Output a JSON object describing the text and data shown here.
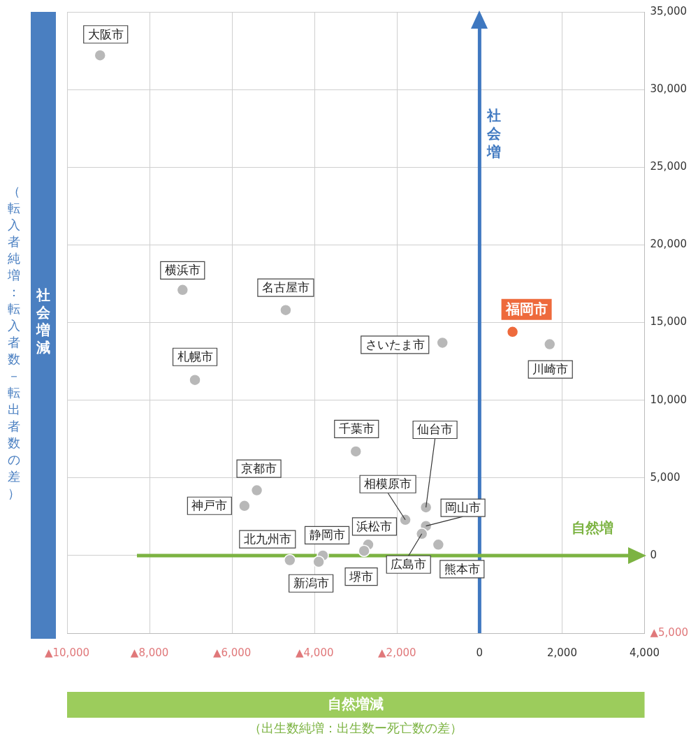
{
  "chart_data": {
    "type": "scatter",
    "xlabel": "自然増減",
    "ylabel": "社会増減",
    "x": [
      -9200,
      -7200,
      -4700,
      -6900,
      -900,
      800,
      1700,
      -3000,
      -1300,
      -5400,
      -5700,
      -1800,
      -1300,
      -1400,
      -1000,
      -2700,
      -2800,
      -4600,
      -3800,
      -3900
    ],
    "values": [
      32200,
      17100,
      15800,
      11300,
      13700,
      14400,
      13600,
      6700,
      3100,
      4200,
      3200,
      2300,
      1900,
      1400,
      700,
      700,
      300,
      -300,
      0,
      -400
    ],
    "colors": [
      "#b8b8b8",
      "#b8b8b8",
      "#b8b8b8",
      "#b8b8b8",
      "#b8b8b8",
      "#ee6a3c",
      "#b8b8b8",
      "#b8b8b8",
      "#b8b8b8",
      "#b8b8b8",
      "#b8b8b8",
      "#b8b8b8",
      "#b8b8b8",
      "#b8b8b8",
      "#b8b8b8",
      "#b8b8b8",
      "#b8b8b8",
      "#b8b8b8",
      "#b8b8b8",
      "#b8b8b8"
    ],
    "marker": "circle",
    "grid": true,
    "xlim": [
      -10000,
      4000
    ],
    "ylim": [
      -5000,
      35000
    ],
    "xticks": [
      {
        "value": -10000,
        "label": "▲10,000"
      },
      {
        "value": -8000,
        "label": "▲8,000"
      },
      {
        "value": -6000,
        "label": "▲6,000"
      },
      {
        "value": -4000,
        "label": "▲4,000"
      },
      {
        "value": -2000,
        "label": "▲2,000"
      },
      0,
      {
        "value": 2000,
        "label": "2,000"
      },
      {
        "value": 4000,
        "label": "4,000"
      }
    ],
    "yticks": [
      {
        "value": -5000,
        "label": "▲5,000"
      },
      0,
      {
        "value": 5000,
        "label": "5,000"
      },
      {
        "value": 10000,
        "label": "10,000"
      },
      {
        "value": 15000,
        "label": "15,000"
      },
      {
        "value": 20000,
        "label": "20,000"
      },
      {
        "value": 25000,
        "label": "25,000"
      },
      {
        "value": 30000,
        "label": "30,000"
      },
      {
        "value": 35000,
        "label": "35,000"
      }
    ],
    "ref_lines": [
      {
        "axis": "x",
        "value": 0,
        "label": "社会増",
        "color": "#3f78c0"
      },
      {
        "axis": "y",
        "value": 0,
        "label": "自然増",
        "color": "#7cb342"
      }
    ],
    "annotations": [
      {
        "text": "大阪市",
        "x": -9200,
        "y": 32200
      },
      {
        "text": "横浜市",
        "x": -7200,
        "y": 17100
      },
      {
        "text": "名古屋市",
        "x": -4700,
        "y": 15800
      },
      {
        "text": "札幌市",
        "x": -6900,
        "y": 11300
      },
      {
        "text": "さいたま市",
        "x": -900,
        "y": 13700
      },
      {
        "text": "福岡市",
        "x": 800,
        "y": 14400
      },
      {
        "text": "川崎市",
        "x": 1700,
        "y": 13600
      },
      {
        "text": "千葉市",
        "x": -3000,
        "y": 6700
      },
      {
        "text": "仙台市",
        "x": -1300,
        "y": 3100
      },
      {
        "text": "京都市",
        "x": -5400,
        "y": 4200
      },
      {
        "text": "神戸市",
        "x": -5700,
        "y": 3200
      },
      {
        "text": "相模原市",
        "x": -1800,
        "y": 2300
      },
      {
        "text": "岡山市",
        "x": -1300,
        "y": 1900
      },
      {
        "text": "広島市",
        "x": -1400,
        "y": 1400
      },
      {
        "text": "熊本市",
        "x": -1000,
        "y": 700
      },
      {
        "text": "浜松市",
        "x": -2700,
        "y": 700
      },
      {
        "text": "堺市",
        "x": -2800,
        "y": 300
      },
      {
        "text": "北九州市",
        "x": -4600,
        "y": -300
      },
      {
        "text": "静岡市",
        "x": -3800,
        "y": 0
      },
      {
        "text": "新潟市",
        "x": -3900,
        "y": -400
      },
      "（転入者純増：転入者数－転出者数の差）",
      "（出生数純増：出生数ー死亡数の差）"
    ]
  }
}
